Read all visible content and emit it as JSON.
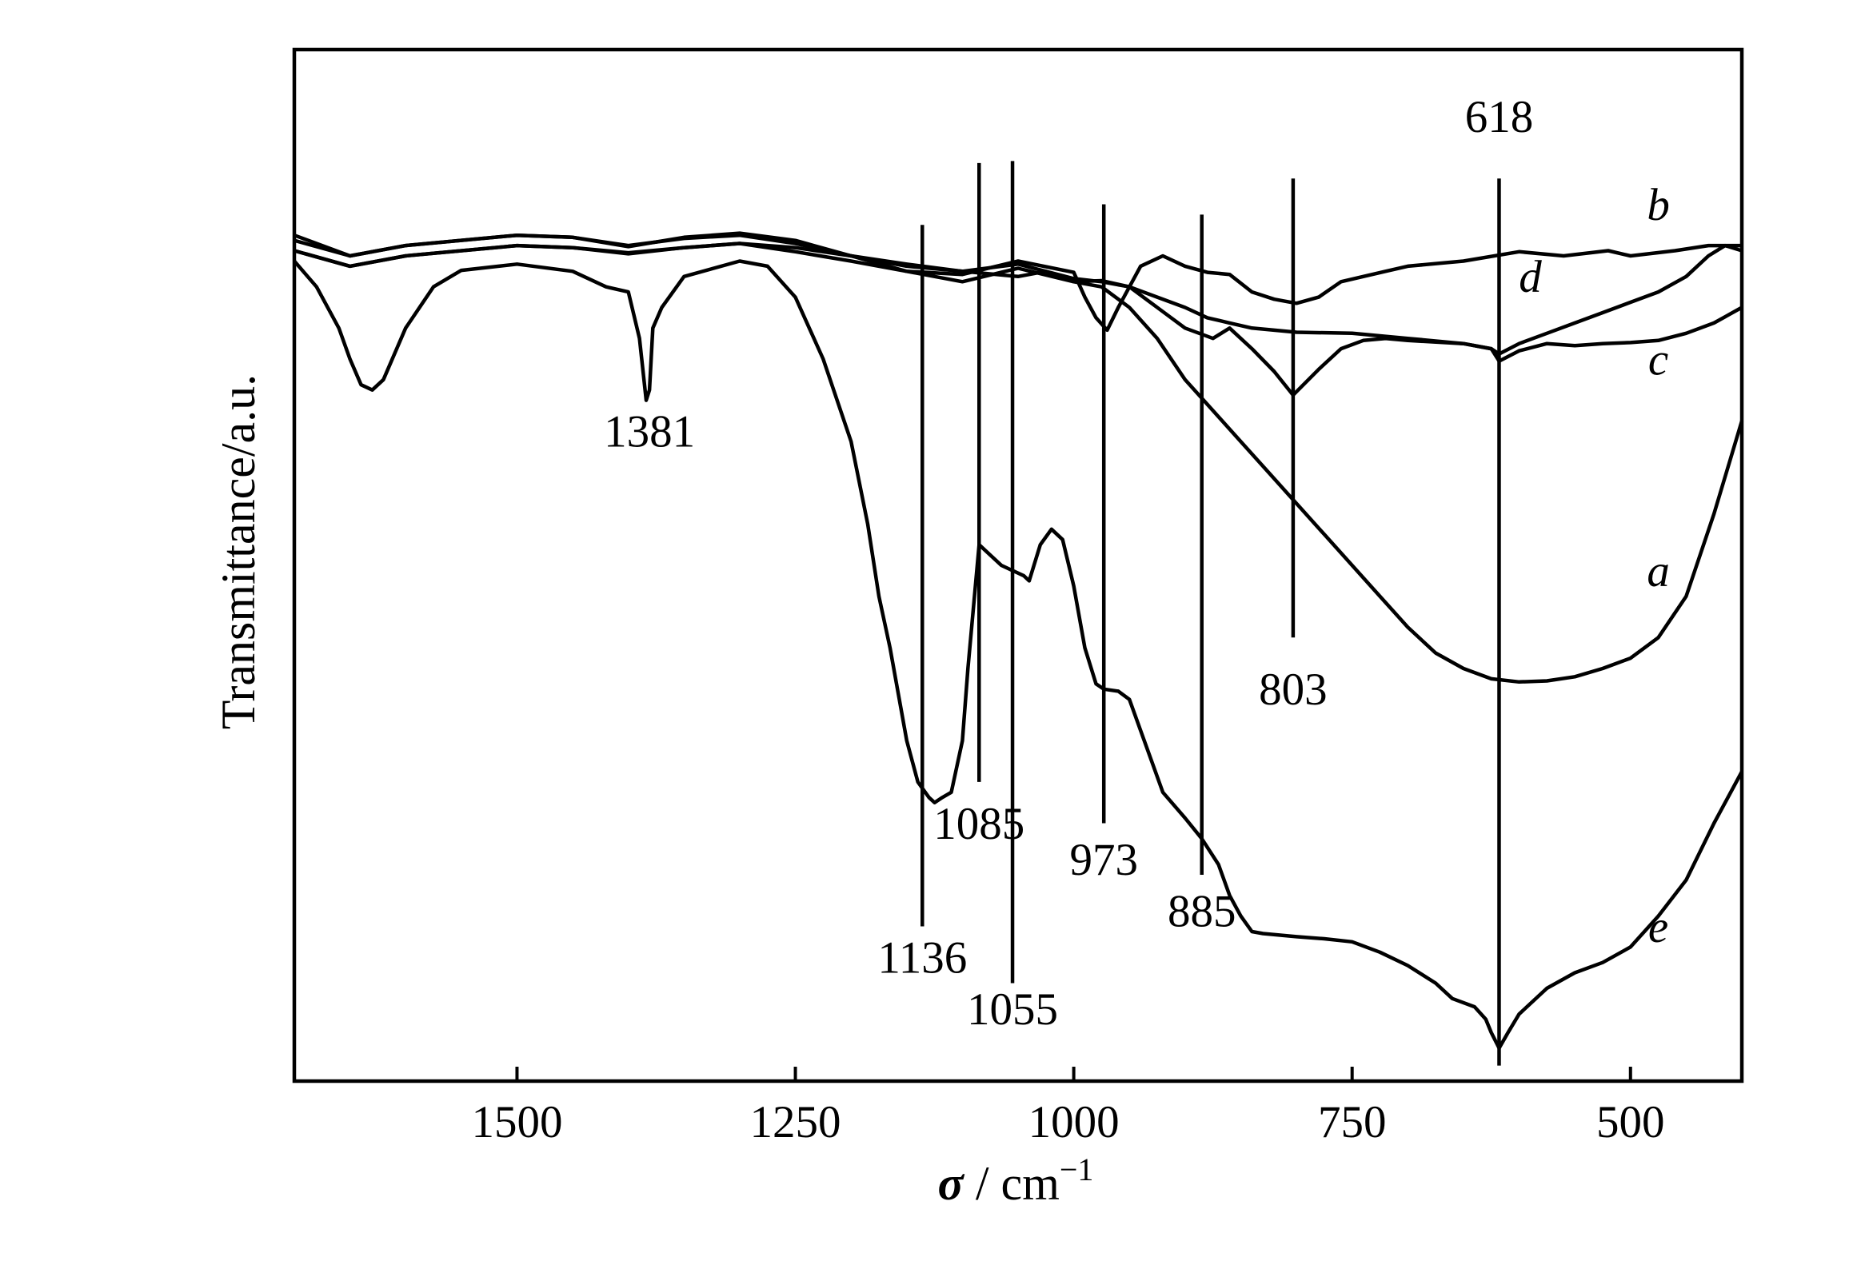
{
  "chart_data": {
    "type": "line",
    "title": "",
    "xlabel_symbol": "σ",
    "xlabel_unit": " / cm",
    "xlabel_sup": "−1",
    "ylabel": "Transmittance/a.u.",
    "xlim": [
      1700,
      400
    ],
    "x_reversed": true,
    "ylim": [
      0,
      100
    ],
    "grid": false,
    "legend": "none",
    "x_ticks": [
      {
        "value": 1500,
        "label": "1500"
      },
      {
        "value": 1250,
        "label": "1250"
      },
      {
        "value": 1000,
        "label": "1000"
      },
      {
        "value": 750,
        "label": "750"
      },
      {
        "value": 500,
        "label": "500"
      }
    ],
    "series": [
      {
        "label": "a",
        "label_pos": [
          475,
          48
        ],
        "points": [
          [
            1700,
            80.5
          ],
          [
            1650,
            79
          ],
          [
            1600,
            80
          ],
          [
            1500,
            81
          ],
          [
            1450,
            80.8
          ],
          [
            1400,
            80.2
          ],
          [
            1350,
            80.8
          ],
          [
            1300,
            81.2
          ],
          [
            1250,
            80.8
          ],
          [
            1200,
            80
          ],
          [
            1150,
            79.2
          ],
          [
            1100,
            78.5
          ],
          [
            1050,
            78
          ],
          [
            1025,
            78.5
          ],
          [
            1000,
            77.5
          ],
          [
            975,
            77
          ],
          [
            950,
            75
          ],
          [
            925,
            72
          ],
          [
            900,
            68
          ],
          [
            875,
            65
          ],
          [
            850,
            62
          ],
          [
            825,
            59
          ],
          [
            800,
            56
          ],
          [
            775,
            53
          ],
          [
            750,
            50
          ],
          [
            725,
            47
          ],
          [
            700,
            44
          ],
          [
            675,
            41.5
          ],
          [
            650,
            40
          ],
          [
            625,
            39
          ],
          [
            600,
            38.7
          ],
          [
            575,
            38.8
          ],
          [
            550,
            39.2
          ],
          [
            525,
            40
          ],
          [
            500,
            41
          ],
          [
            475,
            43
          ],
          [
            450,
            47
          ],
          [
            425,
            55
          ],
          [
            400,
            64
          ]
        ]
      },
      {
        "label": "b",
        "label_pos": [
          475,
          83.5
        ],
        "points": [
          [
            1700,
            82
          ],
          [
            1650,
            80
          ],
          [
            1600,
            81
          ],
          [
            1500,
            82
          ],
          [
            1450,
            81.8
          ],
          [
            1400,
            80.9
          ],
          [
            1350,
            81.8
          ],
          [
            1300,
            82.2
          ],
          [
            1250,
            81.5
          ],
          [
            1200,
            80
          ],
          [
            1150,
            78.5
          ],
          [
            1100,
            78.2
          ],
          [
            1050,
            79.5
          ],
          [
            1000,
            78.4
          ],
          [
            990,
            76
          ],
          [
            980,
            74
          ],
          [
            970,
            72.8
          ],
          [
            960,
            75
          ],
          [
            940,
            79
          ],
          [
            920,
            80
          ],
          [
            900,
            79
          ],
          [
            880,
            78.4
          ],
          [
            860,
            78.2
          ],
          [
            840,
            76.5
          ],
          [
            820,
            75.8
          ],
          [
            800,
            75.4
          ],
          [
            780,
            76
          ],
          [
            760,
            77.5
          ],
          [
            740,
            78
          ],
          [
            720,
            78.5
          ],
          [
            700,
            79
          ],
          [
            650,
            79.5
          ],
          [
            600,
            80.4
          ],
          [
            560,
            80
          ],
          [
            520,
            80.5
          ],
          [
            500,
            80
          ],
          [
            460,
            80.5
          ],
          [
            430,
            81
          ],
          [
            400,
            81
          ]
        ]
      },
      {
        "label": "c",
        "label_pos": [
          475,
          68.5
        ],
        "points": [
          [
            1700,
            80.5
          ],
          [
            1650,
            79
          ],
          [
            1600,
            80
          ],
          [
            1500,
            81
          ],
          [
            1450,
            80.8
          ],
          [
            1400,
            80.3
          ],
          [
            1350,
            80.8
          ],
          [
            1300,
            81.2
          ],
          [
            1250,
            80.4
          ],
          [
            1200,
            79.5
          ],
          [
            1150,
            78.5
          ],
          [
            1100,
            77.5
          ],
          [
            1050,
            78.8
          ],
          [
            1000,
            77.5
          ],
          [
            975,
            77.6
          ],
          [
            950,
            77
          ],
          [
            925,
            75
          ],
          [
            900,
            73
          ],
          [
            875,
            72
          ],
          [
            860,
            73
          ],
          [
            840,
            71
          ],
          [
            820,
            68.8
          ],
          [
            803,
            66.5
          ],
          [
            780,
            69
          ],
          [
            760,
            71
          ],
          [
            740,
            71.8
          ],
          [
            720,
            72
          ],
          [
            700,
            71.8
          ],
          [
            650,
            71.5
          ],
          [
            625,
            71
          ],
          [
            618,
            69.8
          ],
          [
            600,
            70.8
          ],
          [
            575,
            71.5
          ],
          [
            550,
            71.3
          ],
          [
            525,
            71.5
          ],
          [
            500,
            71.6
          ],
          [
            475,
            71.8
          ],
          [
            450,
            72.5
          ],
          [
            425,
            73.5
          ],
          [
            400,
            75
          ]
        ]
      },
      {
        "label": "d",
        "label_pos": [
          590,
          76.5
        ],
        "points": [
          [
            1700,
            81.5
          ],
          [
            1650,
            80
          ],
          [
            1600,
            81
          ],
          [
            1500,
            82
          ],
          [
            1450,
            81.8
          ],
          [
            1400,
            81
          ],
          [
            1350,
            81.7
          ],
          [
            1300,
            82
          ],
          [
            1250,
            81.2
          ],
          [
            1200,
            80
          ],
          [
            1150,
            79
          ],
          [
            1100,
            78.5
          ],
          [
            1050,
            79.2
          ],
          [
            1000,
            77.8
          ],
          [
            975,
            77.5
          ],
          [
            950,
            77
          ],
          [
            925,
            76
          ],
          [
            900,
            75
          ],
          [
            880,
            74
          ],
          [
            860,
            73.5
          ],
          [
            840,
            73
          ],
          [
            820,
            72.8
          ],
          [
            800,
            72.6
          ],
          [
            750,
            72.5
          ],
          [
            700,
            72
          ],
          [
            650,
            71.5
          ],
          [
            625,
            71
          ],
          [
            618,
            70.5
          ],
          [
            600,
            71.5
          ],
          [
            575,
            72.5
          ],
          [
            550,
            73.5
          ],
          [
            525,
            74.5
          ],
          [
            500,
            75.5
          ],
          [
            475,
            76.5
          ],
          [
            450,
            78
          ],
          [
            430,
            80
          ],
          [
            415,
            81
          ],
          [
            400,
            80.5
          ]
        ]
      },
      {
        "label": "e",
        "label_pos": [
          475,
          13.5
        ],
        "points": [
          [
            1700,
            79.5
          ],
          [
            1680,
            77
          ],
          [
            1660,
            73
          ],
          [
            1650,
            70
          ],
          [
            1640,
            67.5
          ],
          [
            1630,
            67
          ],
          [
            1620,
            68
          ],
          [
            1600,
            73
          ],
          [
            1575,
            77
          ],
          [
            1550,
            78.6
          ],
          [
            1500,
            79.2
          ],
          [
            1450,
            78.5
          ],
          [
            1420,
            77
          ],
          [
            1400,
            76.5
          ],
          [
            1390,
            72
          ],
          [
            1384,
            66
          ],
          [
            1381,
            67
          ],
          [
            1378,
            73
          ],
          [
            1370,
            75
          ],
          [
            1350,
            78
          ],
          [
            1300,
            79.5
          ],
          [
            1275,
            79
          ],
          [
            1250,
            76
          ],
          [
            1225,
            70
          ],
          [
            1200,
            62
          ],
          [
            1185,
            54
          ],
          [
            1175,
            47
          ],
          [
            1165,
            42
          ],
          [
            1150,
            33
          ],
          [
            1140,
            29
          ],
          [
            1130,
            27.5
          ],
          [
            1125,
            27
          ],
          [
            1118,
            27.5
          ],
          [
            1110,
            28
          ],
          [
            1100,
            33
          ],
          [
            1095,
            40
          ],
          [
            1085,
            52
          ],
          [
            1075,
            51
          ],
          [
            1065,
            50
          ],
          [
            1055,
            49.5
          ],
          [
            1045,
            49
          ],
          [
            1040,
            48.5
          ],
          [
            1030,
            52
          ],
          [
            1020,
            53.5
          ],
          [
            1010,
            52.5
          ],
          [
            1000,
            48
          ],
          [
            990,
            42
          ],
          [
            980,
            38.5
          ],
          [
            973,
            38
          ],
          [
            960,
            37.8
          ],
          [
            950,
            37
          ],
          [
            930,
            31
          ],
          [
            920,
            28
          ],
          [
            900,
            25.5
          ],
          [
            885,
            23.5
          ],
          [
            870,
            21
          ],
          [
            860,
            18
          ],
          [
            850,
            16
          ],
          [
            840,
            14.5
          ],
          [
            830,
            14.3
          ],
          [
            800,
            14
          ],
          [
            775,
            13.8
          ],
          [
            750,
            13.5
          ],
          [
            725,
            12.5
          ],
          [
            700,
            11.2
          ],
          [
            675,
            9.5
          ],
          [
            660,
            8
          ],
          [
            640,
            7.2
          ],
          [
            630,
            6
          ],
          [
            625,
            4.7
          ],
          [
            618,
            3.2
          ],
          [
            610,
            4.7
          ],
          [
            600,
            6.5
          ],
          [
            575,
            9
          ],
          [
            550,
            10.5
          ],
          [
            525,
            11.5
          ],
          [
            500,
            13
          ],
          [
            475,
            16
          ],
          [
            450,
            19.5
          ],
          [
            425,
            25
          ],
          [
            400,
            30
          ]
        ]
      }
    ],
    "peaks": [
      {
        "value": 1381,
        "label": "1381",
        "y_top": 67,
        "y_bottom": 67,
        "label_y": 61.5,
        "anchor": "middle"
      },
      {
        "value": 1136,
        "label": "1136",
        "y_top": 83,
        "y_bottom": 15,
        "label_y": 10.5,
        "anchor": "middle"
      },
      {
        "value": 1085,
        "label": "1085",
        "y_top": 89,
        "y_bottom": 29,
        "label_y": 23.5,
        "anchor": "middle"
      },
      {
        "value": 1055,
        "label": "1055",
        "y_top": 89.2,
        "y_bottom": 9.5,
        "label_y": 5.5,
        "anchor": "middle"
      },
      {
        "value": 973,
        "label": "973",
        "y_top": 85,
        "y_bottom": 25,
        "label_y": 20,
        "anchor": "middle"
      },
      {
        "value": 885,
        "label": "885",
        "y_top": 84,
        "y_bottom": 20,
        "label_y": 15,
        "anchor": "middle"
      },
      {
        "value": 803,
        "label": "803",
        "y_top": 87.5,
        "y_bottom": 43,
        "label_y": 36.5,
        "anchor": "middle"
      },
      {
        "value": 618,
        "label": "618",
        "y_top": 87.5,
        "y_bottom": 1.5,
        "label_y": 92,
        "anchor": "middle"
      }
    ]
  }
}
